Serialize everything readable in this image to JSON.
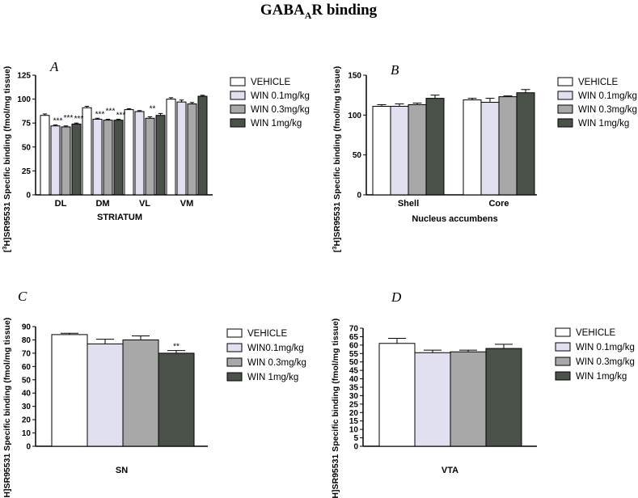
{
  "figure": {
    "title_main": "GABA",
    "title_sub": "A",
    "title_end": "R binding"
  },
  "colors": {
    "vehicle": "#ffffff",
    "win01": "#e1e0f0",
    "win03": "#a8a8a8",
    "win1": "#4a5148"
  },
  "chart_data": [
    {
      "id": "A",
      "type": "bar",
      "panel_label": "A",
      "ylabel_iso": "3",
      "ylabel_pre": "[",
      "ylabel_post": "H]SR95531 Specific binding (fmol/mg tissue)",
      "xlabel": "STRIATUM",
      "ylim": [
        0,
        125
      ],
      "yticks": [
        0,
        25,
        50,
        75,
        100,
        125
      ],
      "categories": [
        "DL",
        "DM",
        "VL",
        "VM"
      ],
      "series": [
        {
          "name": "VEHICLE",
          "color": "#ffffff",
          "values": [
            83,
            91,
            89,
            100
          ],
          "errors": [
            1.5,
            1.5,
            1,
            1.5
          ]
        },
        {
          "name": "WIN 0.1mg/kg",
          "color": "#e1e0f0",
          "values": [
            72,
            79,
            87,
            97
          ],
          "errors": [
            1,
            1,
            1,
            2
          ]
        },
        {
          "name": "WIN 0.3mg/kg",
          "color": "#a8a8a8",
          "values": [
            71,
            78,
            80,
            95
          ],
          "errors": [
            1,
            1,
            1.5,
            1.5
          ]
        },
        {
          "name": "WIN 1mg/kg",
          "color": "#4a5148",
          "values": [
            74,
            78,
            83,
            103
          ],
          "errors": [
            1,
            1,
            2,
            1
          ]
        }
      ],
      "annotations": [
        {
          "category": 0,
          "series": 1,
          "text": "***"
        },
        {
          "category": 0,
          "series": 2,
          "text": "***"
        },
        {
          "category": 0,
          "series": 3,
          "text": "***"
        },
        {
          "category": 1,
          "series": 1,
          "text": "***"
        },
        {
          "category": 1,
          "series": 2,
          "text": "***"
        },
        {
          "category": 1,
          "series": 3,
          "text": "***"
        },
        {
          "category": 2,
          "series": 2,
          "text": "**"
        }
      ],
      "legend": "right"
    },
    {
      "id": "B",
      "type": "bar",
      "panel_label": "B",
      "ylabel_iso": "3",
      "ylabel_pre": "[",
      "ylabel_post": "H]SR95531 Specific binding (fmol/mg tissue)",
      "xlabel": "Nucleus accumbens",
      "ylim": [
        0,
        150
      ],
      "yticks": [
        0,
        50,
        100,
        150
      ],
      "categories": [
        "Shell",
        "Core"
      ],
      "series": [
        {
          "name": "VEHICLE",
          "color": "#ffffff",
          "values": [
            111,
            119
          ],
          "errors": [
            2,
            2
          ]
        },
        {
          "name": "WIN 0.1mg/kg",
          "color": "#e1e0f0",
          "values": [
            111,
            116
          ],
          "errors": [
            3,
            5
          ]
        },
        {
          "name": "WIN 0.3mg/kg",
          "color": "#a8a8a8",
          "values": [
            113,
            123
          ],
          "errors": [
            2,
            1
          ]
        },
        {
          "name": "WIN 1mg/kg",
          "color": "#4a5148",
          "values": [
            121,
            128
          ],
          "errors": [
            4,
            4
          ]
        }
      ],
      "annotations": [],
      "legend": "right"
    },
    {
      "id": "C",
      "type": "bar",
      "panel_label": "C",
      "ylabel_iso": "3",
      "ylabel_pre": "[",
      "ylabel_post": "H]SR95531 Specific binding (fmol/mg tissue)",
      "xlabel": "SN",
      "ylim": [
        0,
        90
      ],
      "yticks": [
        0,
        10,
        20,
        30,
        40,
        50,
        60,
        70,
        80,
        90
      ],
      "categories": [
        ""
      ],
      "series": [
        {
          "name": "VEHICLE",
          "color": "#ffffff",
          "values": [
            84
          ],
          "errors": [
            1
          ]
        },
        {
          "name": "WIN0.1mg/kg",
          "color": "#e1e0f0",
          "values": [
            77
          ],
          "errors": [
            3.5
          ]
        },
        {
          "name": "WIN 0.3mg/kg",
          "color": "#a8a8a8",
          "values": [
            80
          ],
          "errors": [
            3
          ]
        },
        {
          "name": "WIN 1mg/kg",
          "color": "#4a5148",
          "values": [
            70
          ],
          "errors": [
            2
          ]
        }
      ],
      "annotations": [
        {
          "category": 0,
          "series": 3,
          "text": "**"
        }
      ],
      "legend": "right"
    },
    {
      "id": "D",
      "type": "bar",
      "panel_label": "D",
      "ylabel_iso": "3",
      "ylabel_pre": "[",
      "ylabel_post": "H]SR95531 Specific binding (fmol/mg tissue)",
      "xlabel": "VTA",
      "ylim": [
        0,
        70
      ],
      "yticks": [
        0,
        5,
        10,
        15,
        20,
        25,
        30,
        35,
        40,
        45,
        50,
        55,
        60,
        65,
        70
      ],
      "categories": [
        ""
      ],
      "series": [
        {
          "name": "VEHICLE",
          "color": "#ffffff",
          "values": [
            61
          ],
          "errors": [
            3
          ]
        },
        {
          "name": "WIN 0.1mg/kg",
          "color": "#e1e0f0",
          "values": [
            55.5
          ],
          "errors": [
            1.5
          ]
        },
        {
          "name": "WIN 0.3mg/kg",
          "color": "#a8a8a8",
          "values": [
            56
          ],
          "errors": [
            1
          ]
        },
        {
          "name": "WIN 1mg/kg",
          "color": "#4a5148",
          "values": [
            58
          ],
          "errors": [
            2.5
          ]
        }
      ],
      "annotations": [],
      "legend": "right"
    }
  ]
}
